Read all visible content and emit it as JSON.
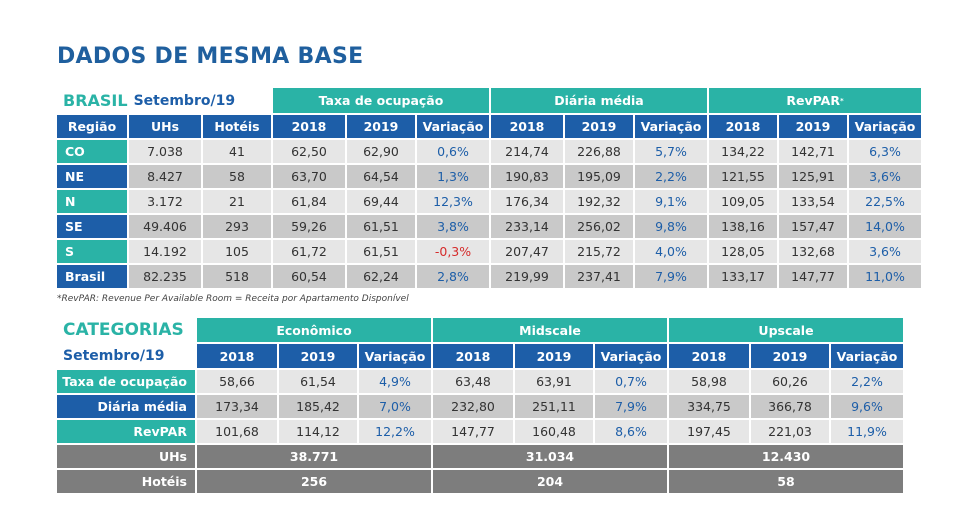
{
  "title": "DADOS DE MESMA BASE",
  "table1": {
    "label": "BRASIL",
    "period": "Setembro/19",
    "groups": [
      "Taxa de ocupação",
      "Diária média",
      "RevPAR*"
    ],
    "headers": [
      "Região",
      "UHs",
      "Hotéis",
      "2018",
      "2019",
      "Variação",
      "2018",
      "2019",
      "Variação",
      "2018",
      "2019",
      "Variação"
    ],
    "rows": [
      [
        "CO",
        "7.038",
        "41",
        "62,50",
        "62,90",
        "0,6%",
        "214,74",
        "226,88",
        "5,7%",
        "134,22",
        "142,71",
        "6,3%"
      ],
      [
        "NE",
        "8.427",
        "58",
        "63,70",
        "64,54",
        "1,3%",
        "190,83",
        "195,09",
        "2,2%",
        "121,55",
        "125,91",
        "3,6%"
      ],
      [
        "N",
        "3.172",
        "21",
        "61,84",
        "69,44",
        "12,3%",
        "176,34",
        "192,32",
        "9,1%",
        "109,05",
        "133,54",
        "22,5%"
      ],
      [
        "SE",
        "49.406",
        "293",
        "59,26",
        "61,51",
        "3,8%",
        "233,14",
        "256,02",
        "9,8%",
        "138,16",
        "157,47",
        "14,0%"
      ],
      [
        "S",
        "14.192",
        "105",
        "61,72",
        "61,51",
        "-0,3%",
        "207,47",
        "215,72",
        "4,0%",
        "128,05",
        "132,68",
        "3,6%"
      ],
      [
        "Brasil",
        "82.235",
        "518",
        "60,54",
        "62,24",
        "2,8%",
        "219,99",
        "237,41",
        "7,9%",
        "133,17",
        "147,77",
        "11,0%"
      ]
    ],
    "footnote": "*RevPAR: Revenue Per Available Room = Receita por Apartamento Disponível"
  },
  "table2": {
    "title": "CATEGORIAS",
    "period": "Setembro/19",
    "groups": [
      "Econômico",
      "Midscale",
      "Upscale"
    ],
    "headers": [
      "2018",
      "2019",
      "Variação",
      "2018",
      "2019",
      "Variação",
      "2018",
      "2019",
      "Variação"
    ],
    "rows": [
      {
        "label": "Taxa de ocupação",
        "values": [
          "58,66",
          "61,54",
          "4,9%",
          "63,48",
          "63,91",
          "0,7%",
          "58,98",
          "60,26",
          "2,2%"
        ]
      },
      {
        "label": "Diária média",
        "values": [
          "173,34",
          "185,42",
          "7,0%",
          "232,80",
          "251,11",
          "7,9%",
          "334,75",
          "366,78",
          "9,6%"
        ]
      },
      {
        "label": "RevPAR",
        "values": [
          "101,68",
          "114,12",
          "12,2%",
          "147,77",
          "160,48",
          "8,6%",
          "197,45",
          "221,03",
          "11,9%"
        ]
      }
    ],
    "totals": [
      {
        "label": "UHs",
        "values": [
          "38.771",
          "31.034",
          "12.430"
        ]
      },
      {
        "label": "Hotéis",
        "values": [
          "256",
          "204",
          "58"
        ]
      }
    ]
  },
  "colors": {
    "teal": "#2ab3a6",
    "blue": "#1d5ea8",
    "negative": "#d52b2b",
    "gray": "#7d7d7d"
  }
}
